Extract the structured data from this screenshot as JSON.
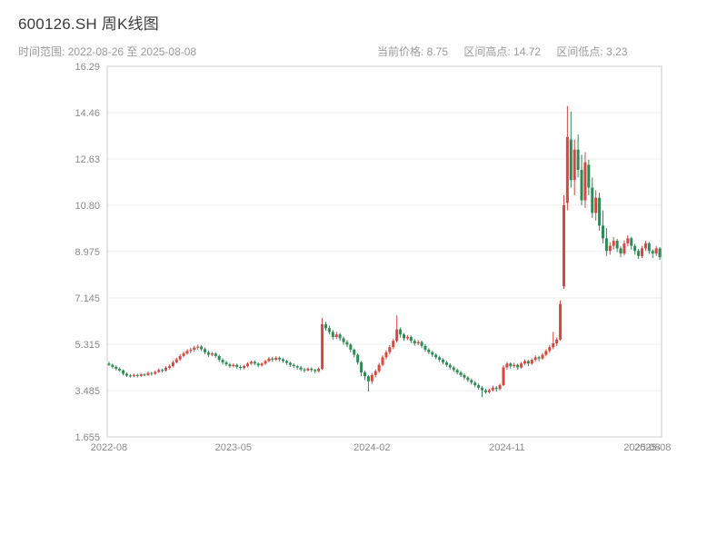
{
  "header": {
    "title": "600126.SH 周K线图",
    "range_label": "时间范围: 2022-08-26 至 2025-08-08",
    "stats": {
      "current": "当前价格: 8.75",
      "high": "区间高点: 14.72",
      "low": "区间低点: 3.23"
    }
  },
  "chart_data": {
    "type": "candlestick",
    "title": "600126.SH 周K线图",
    "symbol": "600126.SH",
    "period": "weekly",
    "date_range": {
      "start": "2022-08-26",
      "end": "2025-08-08"
    },
    "current_price": 8.75,
    "range_high": 14.72,
    "range_low": 3.23,
    "ylim": [
      1.655,
      16.29
    ],
    "y_ticks": [
      "16.29",
      "14.46",
      "12.63",
      "10.80",
      "8.975",
      "7.145",
      "5.315",
      "3.485",
      "1.655"
    ],
    "x_ticks": [
      {
        "label": "2022-08",
        "week": 0
      },
      {
        "label": "2023-05",
        "week": 35
      },
      {
        "label": "2024-02",
        "week": 74
      },
      {
        "label": "2024-11",
        "week": 112
      },
      {
        "label": "2025-08",
        "week": 150
      },
      {
        "label": "2025-08",
        "week": 153
      }
    ],
    "grid": true,
    "legend": "none",
    "colors": {
      "up": "#d9453f",
      "down": "#2e8b57",
      "grid": "#ececec",
      "border": "#cccccc",
      "tick_text": "#8a8a8a"
    },
    "candles": [
      [
        4.55,
        4.62,
        4.45,
        4.5
      ],
      [
        4.5,
        4.55,
        4.35,
        4.42
      ],
      [
        4.42,
        4.48,
        4.28,
        4.35
      ],
      [
        4.35,
        4.4,
        4.22,
        4.28
      ],
      [
        4.28,
        4.32,
        4.08,
        4.15
      ],
      [
        4.15,
        4.2,
        4.02,
        4.08
      ],
      [
        4.08,
        4.14,
        4.0,
        4.05
      ],
      [
        4.05,
        4.16,
        4.01,
        4.1
      ],
      [
        4.1,
        4.15,
        4.0,
        4.06
      ],
      [
        4.06,
        4.18,
        4.02,
        4.12
      ],
      [
        4.12,
        4.17,
        4.05,
        4.1
      ],
      [
        4.1,
        4.24,
        4.06,
        4.18
      ],
      [
        4.18,
        4.22,
        4.08,
        4.15
      ],
      [
        4.15,
        4.28,
        4.1,
        4.22
      ],
      [
        4.22,
        4.36,
        4.18,
        4.3
      ],
      [
        4.3,
        4.35,
        4.2,
        4.28
      ],
      [
        4.28,
        4.44,
        4.24,
        4.38
      ],
      [
        4.38,
        4.52,
        4.32,
        4.45
      ],
      [
        4.45,
        4.66,
        4.4,
        4.6
      ],
      [
        4.6,
        4.78,
        4.55,
        4.72
      ],
      [
        4.72,
        4.92,
        4.66,
        4.85
      ],
      [
        4.85,
        5.02,
        4.8,
        4.95
      ],
      [
        4.95,
        5.12,
        4.9,
        5.05
      ],
      [
        5.05,
        5.18,
        4.96,
        5.1
      ],
      [
        5.1,
        5.25,
        5.02,
        5.18
      ],
      [
        5.18,
        5.3,
        5.1,
        5.22
      ],
      [
        5.22,
        5.28,
        5.05,
        5.12
      ],
      [
        5.12,
        5.18,
        4.92,
        5.0
      ],
      [
        5.0,
        5.06,
        4.82,
        4.9
      ],
      [
        4.9,
        5.02,
        4.84,
        4.95
      ],
      [
        4.95,
        5.0,
        4.78,
        4.85
      ],
      [
        4.85,
        4.9,
        4.62,
        4.7
      ],
      [
        4.7,
        4.76,
        4.52,
        4.6
      ],
      [
        4.6,
        4.66,
        4.45,
        4.52
      ],
      [
        4.52,
        4.58,
        4.38,
        4.45
      ],
      [
        4.45,
        4.56,
        4.4,
        4.5
      ],
      [
        4.5,
        4.55,
        4.35,
        4.42
      ],
      [
        4.42,
        4.48,
        4.3,
        4.38
      ],
      [
        4.38,
        4.5,
        4.33,
        4.45
      ],
      [
        4.45,
        4.6,
        4.4,
        4.55
      ],
      [
        4.55,
        4.68,
        4.5,
        4.62
      ],
      [
        4.62,
        4.68,
        4.48,
        4.55
      ],
      [
        4.55,
        4.6,
        4.4,
        4.48
      ],
      [
        4.48,
        4.6,
        4.43,
        4.55
      ],
      [
        4.55,
        4.7,
        4.5,
        4.65
      ],
      [
        4.65,
        4.8,
        4.6,
        4.75
      ],
      [
        4.75,
        4.82,
        4.62,
        4.7
      ],
      [
        4.7,
        4.84,
        4.65,
        4.78
      ],
      [
        4.78,
        4.83,
        4.64,
        4.72
      ],
      [
        4.72,
        4.78,
        4.58,
        4.65
      ],
      [
        4.65,
        4.7,
        4.5,
        4.58
      ],
      [
        4.58,
        4.63,
        4.42,
        4.5
      ],
      [
        4.5,
        4.56,
        4.38,
        4.45
      ],
      [
        4.45,
        4.5,
        4.32,
        4.4
      ],
      [
        4.4,
        4.45,
        4.25,
        4.32
      ],
      [
        4.32,
        4.38,
        4.2,
        4.28
      ],
      [
        4.28,
        4.4,
        4.24,
        4.35
      ],
      [
        4.35,
        4.4,
        4.22,
        4.3
      ],
      [
        4.3,
        4.35,
        4.16,
        4.25
      ],
      [
        4.25,
        4.4,
        4.2,
        4.35
      ],
      [
        4.35,
        6.35,
        4.3,
        6.1
      ],
      [
        6.1,
        6.2,
        5.85,
        5.95
      ],
      [
        5.95,
        6.05,
        5.7,
        5.8
      ],
      [
        5.8,
        5.88,
        5.5,
        5.6
      ],
      [
        5.6,
        5.8,
        5.52,
        5.7
      ],
      [
        5.7,
        5.76,
        5.45,
        5.55
      ],
      [
        5.55,
        5.62,
        5.3,
        5.4
      ],
      [
        5.4,
        5.48,
        5.2,
        5.3
      ],
      [
        5.3,
        5.36,
        5.0,
        5.1
      ],
      [
        5.1,
        5.15,
        4.8,
        4.9
      ],
      [
        4.9,
        4.95,
        4.5,
        4.6
      ],
      [
        4.6,
        4.65,
        4.05,
        4.2
      ],
      [
        4.2,
        4.28,
        3.9,
        4.05
      ],
      [
        4.05,
        4.1,
        3.45,
        3.85
      ],
      [
        3.85,
        4.18,
        3.75,
        4.1
      ],
      [
        4.1,
        4.32,
        4.0,
        4.25
      ],
      [
        4.25,
        4.58,
        4.18,
        4.5
      ],
      [
        4.5,
        4.88,
        4.45,
        4.8
      ],
      [
        4.8,
        5.08,
        4.72,
        5.0
      ],
      [
        5.0,
        5.28,
        4.92,
        5.2
      ],
      [
        5.2,
        5.52,
        5.12,
        5.45
      ],
      [
        5.45,
        6.45,
        5.38,
        5.9
      ],
      [
        5.9,
        5.98,
        5.58,
        5.7
      ],
      [
        5.7,
        5.76,
        5.45,
        5.55
      ],
      [
        5.55,
        5.68,
        5.48,
        5.6
      ],
      [
        5.6,
        5.66,
        5.36,
        5.45
      ],
      [
        5.45,
        5.52,
        5.26,
        5.35
      ],
      [
        5.35,
        5.48,
        5.28,
        5.4
      ],
      [
        5.4,
        5.46,
        5.16,
        5.25
      ],
      [
        5.25,
        5.32,
        5.02,
        5.1
      ],
      [
        5.1,
        5.16,
        4.92,
        5.0
      ],
      [
        5.0,
        5.06,
        4.82,
        4.9
      ],
      [
        4.9,
        4.96,
        4.72,
        4.8
      ],
      [
        4.8,
        4.86,
        4.62,
        4.7
      ],
      [
        4.7,
        4.76,
        4.52,
        4.6
      ],
      [
        4.6,
        4.66,
        4.42,
        4.5
      ],
      [
        4.5,
        4.56,
        4.32,
        4.4
      ],
      [
        4.4,
        4.46,
        4.22,
        4.3
      ],
      [
        4.3,
        4.36,
        4.12,
        4.2
      ],
      [
        4.2,
        4.26,
        4.02,
        4.1
      ],
      [
        4.1,
        4.16,
        3.92,
        4.0
      ],
      [
        4.0,
        4.06,
        3.82,
        3.9
      ],
      [
        3.9,
        3.96,
        3.72,
        3.8
      ],
      [
        3.8,
        3.86,
        3.62,
        3.7
      ],
      [
        3.7,
        3.76,
        3.52,
        3.6
      ],
      [
        3.6,
        3.66,
        3.23,
        3.5
      ],
      [
        3.5,
        3.56,
        3.35,
        3.42
      ],
      [
        3.42,
        3.56,
        3.38,
        3.5
      ],
      [
        3.5,
        3.68,
        3.45,
        3.6
      ],
      [
        3.6,
        3.66,
        3.45,
        3.55
      ],
      [
        3.55,
        3.76,
        3.5,
        3.7
      ],
      [
        3.7,
        4.48,
        3.66,
        4.4
      ],
      [
        4.4,
        4.62,
        4.3,
        4.55
      ],
      [
        4.55,
        4.6,
        4.35,
        4.45
      ],
      [
        4.45,
        4.58,
        4.38,
        4.5
      ],
      [
        4.5,
        4.55,
        4.3,
        4.4
      ],
      [
        4.4,
        4.62,
        4.35,
        4.55
      ],
      [
        4.55,
        4.72,
        4.48,
        4.65
      ],
      [
        4.65,
        4.7,
        4.45,
        4.55
      ],
      [
        4.55,
        4.76,
        4.5,
        4.7
      ],
      [
        4.7,
        4.88,
        4.62,
        4.8
      ],
      [
        4.8,
        4.86,
        4.65,
        4.75
      ],
      [
        4.75,
        4.96,
        4.7,
        4.9
      ],
      [
        4.9,
        5.12,
        4.84,
        5.05
      ],
      [
        5.05,
        5.28,
        4.98,
        5.2
      ],
      [
        5.2,
        5.8,
        5.12,
        5.35
      ],
      [
        5.35,
        5.58,
        5.25,
        5.5
      ],
      [
        5.5,
        7.05,
        5.45,
        6.9
      ],
      [
        7.6,
        11.2,
        7.5,
        10.8
      ],
      [
        10.9,
        14.72,
        10.6,
        13.5
      ],
      [
        13.4,
        14.5,
        11.5,
        11.8
      ],
      [
        11.8,
        13.4,
        11.2,
        13.0
      ],
      [
        13.0,
        13.6,
        11.9,
        12.2
      ],
      [
        12.2,
        12.8,
        10.8,
        11.0
      ],
      [
        11.0,
        12.9,
        10.7,
        12.5
      ],
      [
        12.4,
        12.6,
        11.2,
        11.5
      ],
      [
        11.5,
        11.9,
        10.3,
        10.5
      ],
      [
        10.5,
        11.4,
        10.2,
        11.1
      ],
      [
        11.1,
        11.3,
        9.8,
        10.0
      ],
      [
        10.0,
        10.6,
        9.3,
        9.5
      ],
      [
        9.5,
        9.9,
        8.8,
        9.0
      ],
      [
        9.0,
        9.35,
        8.85,
        9.2
      ],
      [
        9.2,
        9.55,
        9.05,
        9.4
      ],
      [
        9.4,
        9.48,
        8.95,
        9.1
      ],
      [
        9.1,
        9.18,
        8.75,
        8.9
      ],
      [
        8.9,
        9.42,
        8.82,
        9.3
      ],
      [
        9.3,
        9.62,
        9.18,
        9.5
      ],
      [
        9.5,
        9.56,
        9.05,
        9.2
      ],
      [
        9.2,
        9.28,
        8.85,
        9.0
      ],
      [
        9.0,
        9.08,
        8.68,
        8.8
      ],
      [
        8.8,
        9.2,
        8.72,
        9.1
      ],
      [
        9.1,
        9.4,
        9.0,
        9.3
      ],
      [
        9.3,
        9.36,
        8.88,
        9.0
      ],
      [
        9.0,
        9.06,
        8.72,
        8.9
      ],
      [
        8.9,
        9.2,
        8.8,
        9.1
      ],
      [
        9.1,
        9.15,
        8.65,
        8.75
      ]
    ]
  }
}
